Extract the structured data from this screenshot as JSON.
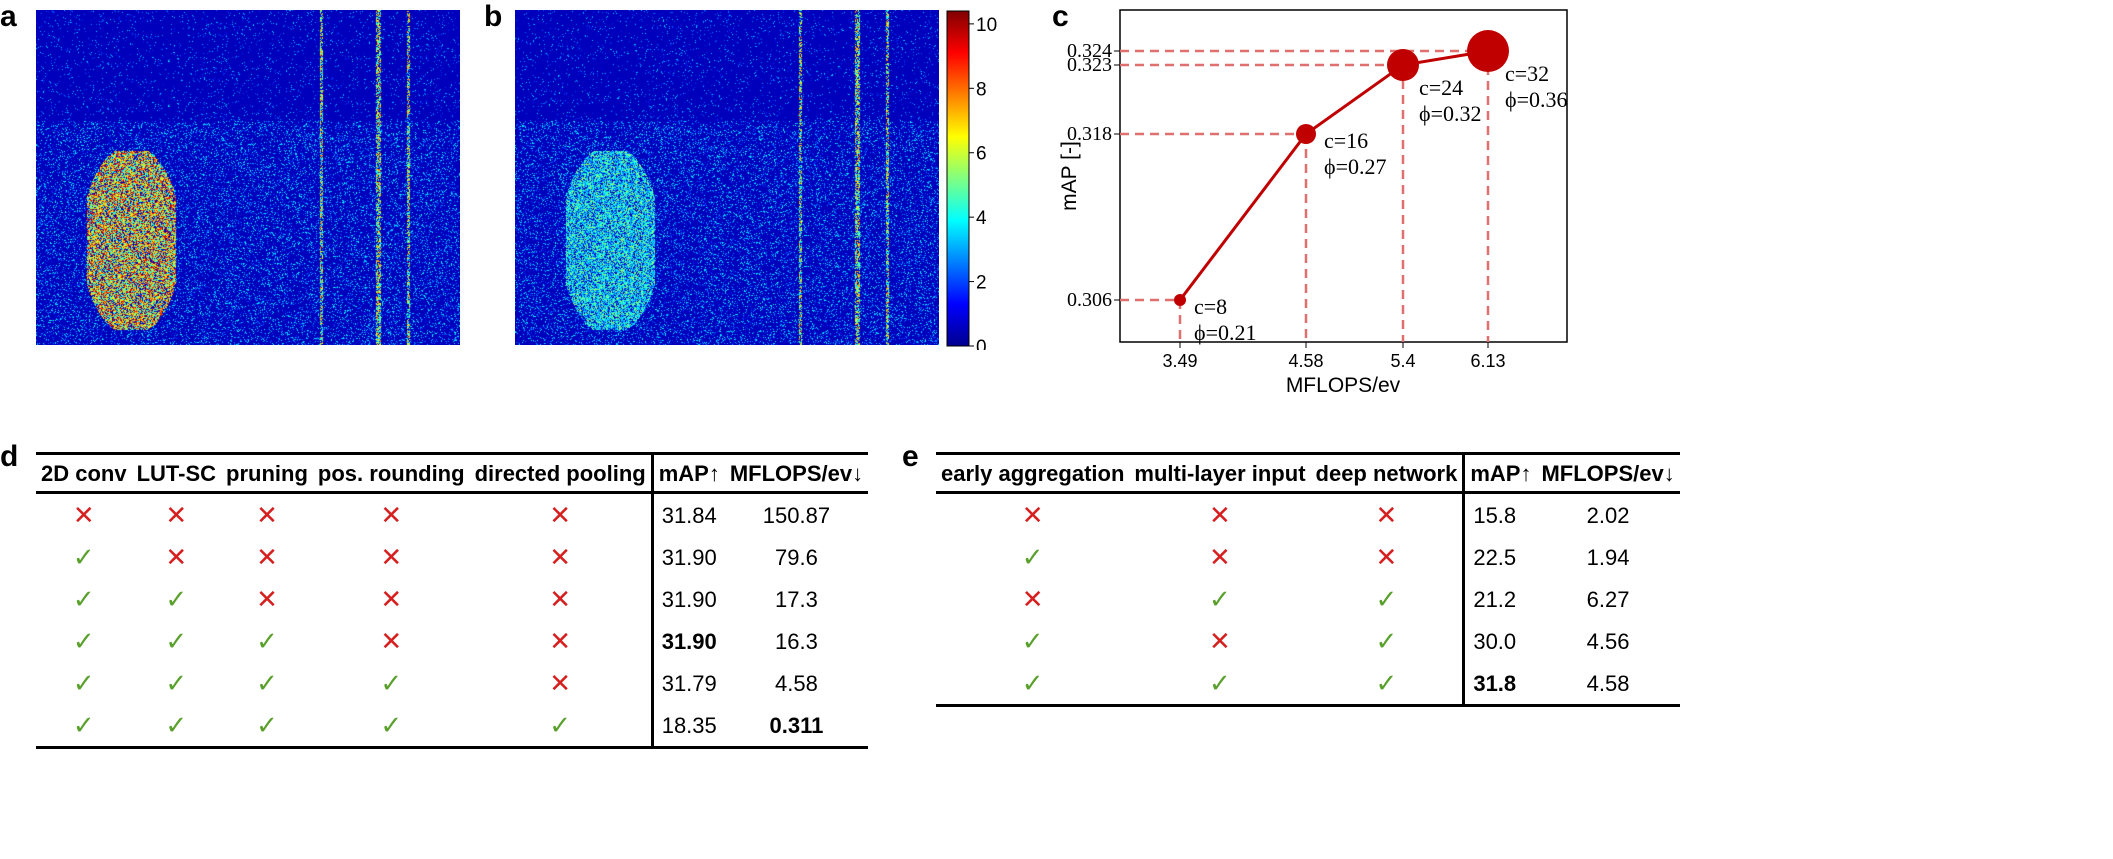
{
  "panels": {
    "a": "a",
    "b": "b",
    "c": "c",
    "d": "d",
    "e": "e"
  },
  "colorbar": {
    "ticks": [
      "0",
      "2",
      "4",
      "6",
      "8",
      "10"
    ],
    "cmap": "jet"
  },
  "chart_data": {
    "type": "line",
    "xlabel": "MFLOPS/ev",
    "ylabel": "mAP [-]",
    "xticks": [
      "3.49",
      "4.58",
      "5.4",
      "6.13"
    ],
    "yticks": [
      "0.306",
      "0.318",
      "0.323",
      "0.324"
    ],
    "points": [
      {
        "x": 3.49,
        "y": 0.306,
        "label1": "c=8",
        "label2": "ϕ=0.21",
        "size": 1
      },
      {
        "x": 4.58,
        "y": 0.318,
        "label1": "c=16",
        "label2": "ϕ=0.27",
        "size": 2
      },
      {
        "x": 5.4,
        "y": 0.323,
        "label1": "c=24",
        "label2": "ϕ=0.32",
        "size": 3
      },
      {
        "x": 6.13,
        "y": 0.324,
        "label1": "c=32",
        "label2": "ϕ=0.36",
        "size": 4
      }
    ],
    "line_color": "#c00000",
    "guide_color": "#e07070"
  },
  "table_d": {
    "headers": [
      "2D conv",
      "LUT-SC",
      "pruning",
      "pos. rounding",
      "directed pooling",
      "mAP↑",
      "MFLOPS/ev↓"
    ],
    "rows": [
      {
        "marks": [
          "x",
          "x",
          "x",
          "x",
          "x"
        ],
        "map": "31.84",
        "flops": "150.87",
        "bold_map": false,
        "bold_flops": false
      },
      {
        "marks": [
          "c",
          "x",
          "x",
          "x",
          "x"
        ],
        "map": "31.90",
        "flops": "79.6",
        "bold_map": false,
        "bold_flops": false
      },
      {
        "marks": [
          "c",
          "c",
          "x",
          "x",
          "x"
        ],
        "map": "31.90",
        "flops": "17.3",
        "bold_map": false,
        "bold_flops": false
      },
      {
        "marks": [
          "c",
          "c",
          "c",
          "x",
          "x"
        ],
        "map": "31.90",
        "flops": "16.3",
        "bold_map": true,
        "bold_flops": false
      },
      {
        "marks": [
          "c",
          "c",
          "c",
          "c",
          "x"
        ],
        "map": "31.79",
        "flops": "4.58",
        "bold_map": false,
        "bold_flops": false
      },
      {
        "marks": [
          "c",
          "c",
          "c",
          "c",
          "c"
        ],
        "map": "18.35",
        "flops": "0.311",
        "bold_map": false,
        "bold_flops": true
      }
    ]
  },
  "table_e": {
    "headers": [
      "early aggregation",
      "multi-layer input",
      "deep network",
      "mAP↑",
      "MFLOPS/ev↓"
    ],
    "rows": [
      {
        "marks": [
          "x",
          "x",
          "x"
        ],
        "map": "15.8",
        "flops": "2.02",
        "bold_map": false
      },
      {
        "marks": [
          "c",
          "x",
          "x"
        ],
        "map": "22.5",
        "flops": "1.94",
        "bold_map": false
      },
      {
        "marks": [
          "x",
          "c",
          "c"
        ],
        "map": "21.2",
        "flops": "6.27",
        "bold_map": false
      },
      {
        "marks": [
          "c",
          "x",
          "c"
        ],
        "map": "30.0",
        "flops": "4.56",
        "bold_map": false
      },
      {
        "marks": [
          "c",
          "c",
          "c"
        ],
        "map": "31.8",
        "flops": "4.58",
        "bold_map": true
      }
    ]
  },
  "glyphs": {
    "cross": "✕",
    "check": "✓"
  }
}
